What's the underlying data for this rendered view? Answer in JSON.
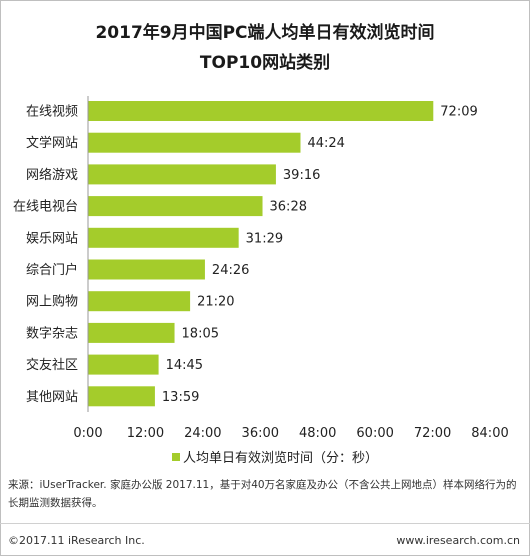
{
  "title_line1": "2017年9月中国PC端人均单日有效浏览时间",
  "title_line2": "TOP10网站类别",
  "source": "来源：iUserTracker. 家庭办公版 2017.11，基于对40万名家庭及办公（不含公共上网地点）样本网络行为的长期监测数据获得。",
  "footer": {
    "copyright": "©2017.11 iResearch Inc.",
    "url": "www.iresearch.com.cn"
  },
  "colors": {
    "bar": "#a4cc2b",
    "axis": "#999999"
  },
  "chart_data": {
    "type": "bar",
    "orientation": "horizontal",
    "categories": [
      "在线视频",
      "文学网站",
      "网络游戏",
      "在线电视台",
      "娱乐网站",
      "综合门户",
      "网上购物",
      "数字杂志",
      "交友社区",
      "其他网站"
    ],
    "series": [
      {
        "name": "人均单日有效浏览时间（分：秒）",
        "values": [
          "72:09",
          "44:24",
          "39:16",
          "36:28",
          "31:29",
          "24:26",
          "21:20",
          "18:05",
          "14:45",
          "13:59"
        ]
      }
    ],
    "x_ticks": [
      "0:00",
      "12:00",
      "24:00",
      "36:00",
      "48:00",
      "60:00",
      "72:00",
      "84:00"
    ],
    "xlim": [
      "0:00",
      "84:00"
    ],
    "grid": false,
    "legend_position": "bottom"
  }
}
